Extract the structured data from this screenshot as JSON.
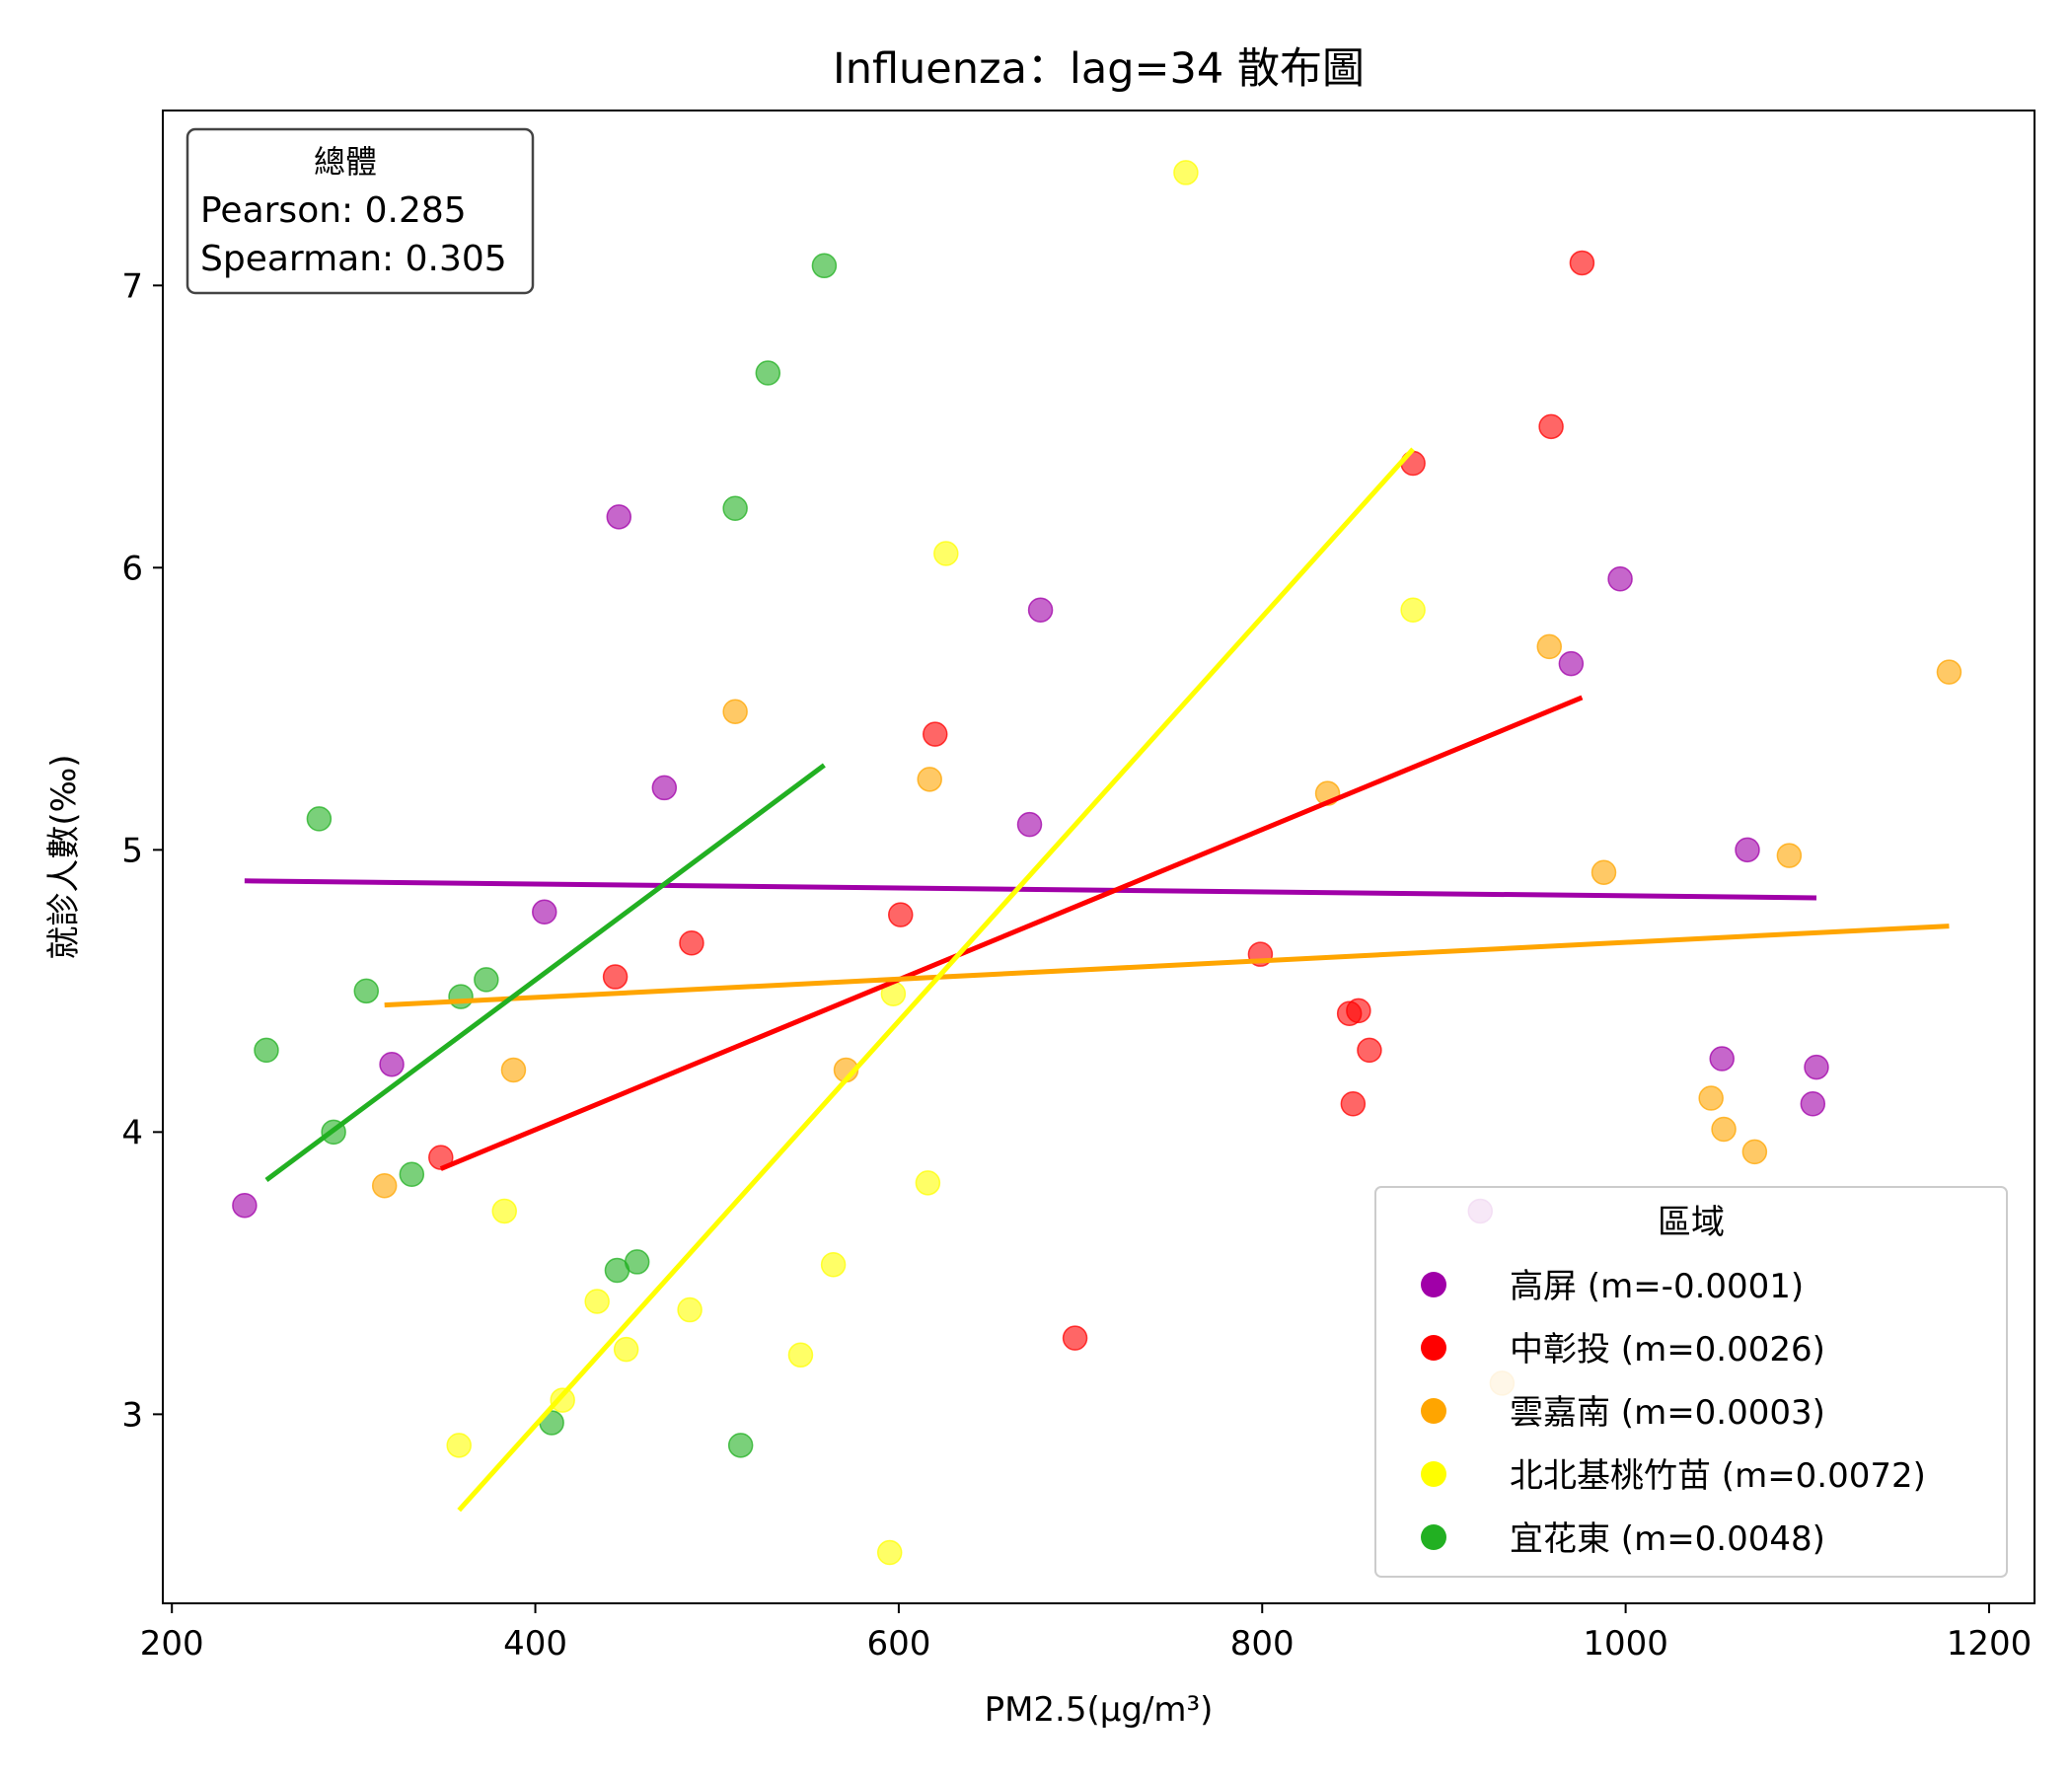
{
  "chart_data": {
    "type": "scatter",
    "title": "Influenza：lag=34 散布圖",
    "xlabel": "PM2.5(μg/m³)",
    "ylabel": "就診人數(‰)",
    "xlim": [
      195,
      1225
    ],
    "ylim": [
      2.33,
      7.62
    ],
    "xticks": [
      200,
      400,
      600,
      800,
      1000,
      1200
    ],
    "yticks": [
      3,
      4,
      5,
      6,
      7
    ],
    "grid": false,
    "stats_box": {
      "title": "總體",
      "pearson": "Pearson: 0.285",
      "spearman": "Spearman: 0.305",
      "position": "top-left"
    },
    "legend": {
      "title": "區域",
      "position": "bottom-right"
    },
    "series": [
      {
        "name": "高屏 (m=-0.0001)",
        "color": "#a000a8",
        "points": [
          [
            240,
            3.74
          ],
          [
            321,
            4.24
          ],
          [
            405,
            4.78
          ],
          [
            446,
            6.18
          ],
          [
            471,
            5.22
          ],
          [
            672,
            5.09
          ],
          [
            678,
            5.85
          ],
          [
            970,
            5.66
          ],
          [
            997,
            5.96
          ],
          [
            1053,
            4.26
          ],
          [
            1067,
            5.0
          ],
          [
            1103,
            4.1
          ],
          [
            1105,
            4.23
          ],
          [
            920,
            3.72
          ]
        ],
        "fit": [
          [
            240,
            4.89
          ],
          [
            1105,
            4.83
          ]
        ]
      },
      {
        "name": "中彰投 (m=0.0026)",
        "color": "#ff0000",
        "points": [
          [
            348,
            3.91
          ],
          [
            444,
            4.55
          ],
          [
            486,
            4.67
          ],
          [
            601,
            4.77
          ],
          [
            620,
            5.41
          ],
          [
            697,
            3.27
          ],
          [
            799,
            4.63
          ],
          [
            848,
            4.42
          ],
          [
            850,
            4.1
          ],
          [
            853,
            4.43
          ],
          [
            859,
            4.29
          ],
          [
            883,
            6.37
          ],
          [
            959,
            6.5
          ],
          [
            976,
            7.08
          ]
        ],
        "fit": [
          [
            348,
            3.87
          ],
          [
            976,
            5.54
          ]
        ]
      },
      {
        "name": "雲嘉南 (m=0.0003)",
        "color": "#ffa500",
        "points": [
          [
            317,
            3.81
          ],
          [
            388,
            4.22
          ],
          [
            510,
            5.49
          ],
          [
            571,
            4.22
          ],
          [
            617,
            5.25
          ],
          [
            836,
            5.2
          ],
          [
            958,
            5.72
          ],
          [
            988,
            4.92
          ],
          [
            1047,
            4.12
          ],
          [
            1054,
            4.01
          ],
          [
            1071,
            3.93
          ],
          [
            1090,
            4.98
          ],
          [
            1178,
            5.63
          ],
          [
            932,
            3.11
          ]
        ],
        "fit": [
          [
            317,
            4.45
          ],
          [
            1178,
            4.73
          ]
        ]
      },
      {
        "name": "北北基桃竹苗 (m=0.0072)",
        "color": "#ffff00",
        "points": [
          [
            358,
            2.89
          ],
          [
            383,
            3.72
          ],
          [
            415,
            3.05
          ],
          [
            434,
            3.4
          ],
          [
            450,
            3.23
          ],
          [
            485,
            3.37
          ],
          [
            546,
            3.21
          ],
          [
            564,
            3.53
          ],
          [
            595,
            2.51
          ],
          [
            597,
            4.49
          ],
          [
            616,
            3.82
          ],
          [
            626,
            6.05
          ],
          [
            758,
            7.4
          ],
          [
            883,
            5.85
          ]
        ],
        "fit": [
          [
            358,
            2.66
          ],
          [
            883,
            6.42
          ]
        ]
      },
      {
        "name": "宜花東 (m=0.0048)",
        "color": "#22b022",
        "points": [
          [
            252,
            4.29
          ],
          [
            281,
            5.11
          ],
          [
            289,
            4.0
          ],
          [
            307,
            4.5
          ],
          [
            332,
            3.85
          ],
          [
            359,
            4.48
          ],
          [
            373,
            4.54
          ],
          [
            409,
            2.97
          ],
          [
            445,
            3.51
          ],
          [
            456,
            3.54
          ],
          [
            510,
            6.21
          ],
          [
            513,
            2.89
          ],
          [
            528,
            6.69
          ],
          [
            559,
            7.07
          ]
        ],
        "fit": [
          [
            252,
            3.83
          ],
          [
            559,
            5.3
          ]
        ]
      }
    ]
  }
}
